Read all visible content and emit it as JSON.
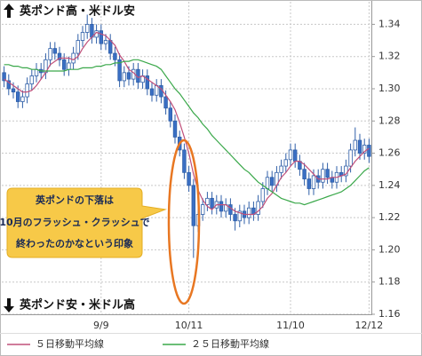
{
  "chart_data": {
    "type": "candlestick",
    "categories": [
      null,
      null,
      null,
      null,
      null,
      null,
      null,
      null,
      null,
      null,
      null,
      null,
      null,
      null,
      null,
      null,
      null,
      null,
      null,
      null,
      null,
      "9/9",
      null,
      null,
      null,
      null,
      null,
      null,
      null,
      null,
      null,
      null,
      null,
      null,
      null,
      null,
      null,
      null,
      null,
      null,
      "10/11",
      null,
      null,
      null,
      null,
      null,
      null,
      null,
      null,
      null,
      null,
      null,
      null,
      null,
      null,
      null,
      null,
      null,
      null,
      null,
      null,
      null,
      "11/10",
      null,
      null,
      null,
      null,
      null,
      null,
      null,
      null,
      null,
      null,
      null,
      null,
      null,
      null,
      null,
      null,
      "12/12"
    ],
    "open": [
      1.31,
      1.305,
      1.3,
      1.298,
      1.292,
      1.295,
      1.303,
      1.308,
      1.312,
      1.31,
      1.318,
      1.325,
      1.322,
      1.318,
      1.312,
      1.316,
      1.322,
      1.33,
      1.335,
      1.34,
      1.332,
      1.336,
      1.328,
      1.33,
      1.322,
      1.318,
      1.305,
      1.31,
      1.306,
      1.312,
      1.304,
      1.308,
      1.3,
      1.296,
      1.302,
      1.295,
      1.288,
      1.28,
      1.27,
      1.262,
      1.248,
      1.24,
      1.215,
      1.222,
      1.228,
      1.232,
      1.226,
      1.23,
      1.224,
      1.228,
      1.222,
      1.218,
      1.224,
      1.22,
      1.226,
      1.222,
      1.23,
      1.238,
      1.245,
      1.24,
      1.248,
      1.252,
      1.256,
      1.262,
      1.255,
      1.25,
      1.244,
      1.238,
      1.246,
      1.242,
      1.25,
      1.245,
      1.242,
      1.248,
      1.246,
      1.252,
      1.262,
      1.268,
      1.26,
      1.265
    ],
    "high": [
      1.314,
      1.309,
      1.304,
      1.302,
      1.299,
      1.307,
      1.312,
      1.316,
      1.316,
      1.322,
      1.329,
      1.329,
      1.326,
      1.322,
      1.32,
      1.326,
      1.334,
      1.339,
      1.346,
      1.344,
      1.34,
      1.34,
      1.334,
      1.334,
      1.326,
      1.322,
      1.314,
      1.314,
      1.316,
      1.316,
      1.312,
      1.312,
      1.304,
      1.306,
      1.306,
      1.299,
      1.292,
      1.284,
      1.274,
      1.266,
      1.252,
      1.244,
      1.226,
      1.232,
      1.236,
      1.236,
      1.234,
      1.234,
      1.232,
      1.232,
      1.226,
      1.228,
      1.228,
      1.23,
      1.23,
      1.234,
      1.242,
      1.249,
      1.249,
      1.252,
      1.256,
      1.26,
      1.266,
      1.266,
      1.259,
      1.254,
      1.248,
      1.25,
      1.25,
      1.254,
      1.254,
      1.249,
      1.252,
      1.252,
      1.256,
      1.266,
      1.276,
      1.272,
      1.269,
      1.269
    ],
    "low": [
      1.301,
      1.296,
      1.294,
      1.288,
      1.288,
      1.291,
      1.299,
      1.304,
      1.306,
      1.306,
      1.314,
      1.318,
      1.314,
      1.308,
      1.308,
      1.312,
      1.318,
      1.326,
      1.331,
      1.328,
      1.328,
      1.324,
      1.324,
      1.318,
      1.314,
      1.301,
      1.301,
      1.302,
      1.302,
      1.3,
      1.3,
      1.296,
      1.292,
      1.292,
      1.291,
      1.284,
      1.276,
      1.266,
      1.258,
      1.244,
      1.236,
      1.195,
      1.211,
      1.218,
      1.224,
      1.222,
      1.222,
      1.22,
      1.22,
      1.218,
      1.212,
      1.214,
      1.216,
      1.216,
      1.218,
      1.218,
      1.226,
      1.234,
      1.236,
      1.236,
      1.244,
      1.248,
      1.252,
      1.251,
      1.246,
      1.24,
      1.234,
      1.234,
      1.238,
      1.238,
      1.241,
      1.238,
      1.238,
      1.242,
      1.242,
      1.248,
      1.258,
      1.256,
      1.256,
      1.254
    ],
    "close": [
      1.305,
      1.3,
      1.298,
      1.292,
      1.295,
      1.303,
      1.308,
      1.312,
      1.31,
      1.318,
      1.325,
      1.322,
      1.318,
      1.312,
      1.316,
      1.322,
      1.33,
      1.335,
      1.34,
      1.332,
      1.336,
      1.328,
      1.33,
      1.322,
      1.318,
      1.305,
      1.31,
      1.306,
      1.312,
      1.304,
      1.308,
      1.3,
      1.296,
      1.302,
      1.295,
      1.288,
      1.28,
      1.27,
      1.262,
      1.248,
      1.24,
      1.215,
      1.222,
      1.228,
      1.232,
      1.226,
      1.23,
      1.224,
      1.228,
      1.222,
      1.218,
      1.224,
      1.22,
      1.226,
      1.222,
      1.23,
      1.238,
      1.245,
      1.24,
      1.248,
      1.252,
      1.256,
      1.262,
      1.255,
      1.25,
      1.244,
      1.238,
      1.246,
      1.242,
      1.25,
      1.245,
      1.242,
      1.248,
      1.246,
      1.252,
      1.262,
      1.268,
      1.26,
      1.265,
      1.258
    ],
    "up_color": "#ffffff",
    "down_color": "#3a6fc4",
    "candle_stroke": "#2f5fa8",
    "series": [
      {
        "name": "５日移動平均線",
        "color": "#c0507a",
        "values": [
          1.306,
          1.304,
          1.302,
          1.3,
          1.298,
          1.298,
          1.299,
          1.302,
          1.306,
          1.31,
          1.315,
          1.317,
          1.319,
          1.319,
          1.319,
          1.318,
          1.32,
          1.325,
          1.329,
          1.332,
          1.335,
          1.334,
          1.333,
          1.33,
          1.327,
          1.321,
          1.317,
          1.312,
          1.31,
          1.307,
          1.308,
          1.306,
          1.304,
          1.302,
          1.3,
          1.296,
          1.292,
          1.287,
          1.279,
          1.27,
          1.26,
          1.247,
          1.237,
          1.231,
          1.227,
          1.225,
          1.228,
          1.228,
          1.228,
          1.226,
          1.224,
          1.223,
          1.222,
          1.222,
          1.222,
          1.224,
          1.227,
          1.232,
          1.235,
          1.24,
          1.245,
          1.248,
          1.252,
          1.255,
          1.255,
          1.253,
          1.25,
          1.247,
          1.244,
          1.244,
          1.244,
          1.245,
          1.245,
          1.246,
          1.247,
          1.251,
          1.255,
          1.258,
          1.261,
          1.263
        ]
      },
      {
        "name": "２５日移動平均線",
        "color": "#3aa84a",
        "values": [
          1.315,
          1.315,
          1.314,
          1.314,
          1.313,
          1.313,
          1.312,
          1.312,
          1.311,
          1.311,
          1.311,
          1.311,
          1.311,
          1.311,
          1.312,
          1.312,
          1.312,
          1.313,
          1.313,
          1.313,
          1.314,
          1.314,
          1.315,
          1.315,
          1.316,
          1.316,
          1.317,
          1.317,
          1.318,
          1.318,
          1.317,
          1.316,
          1.315,
          1.314,
          1.312,
          1.308,
          1.304,
          1.3,
          1.297,
          1.293,
          1.289,
          1.285,
          1.282,
          1.278,
          1.275,
          1.271,
          1.268,
          1.265,
          1.262,
          1.259,
          1.256,
          1.253,
          1.25,
          1.248,
          1.245,
          1.242,
          1.24,
          1.238,
          1.236,
          1.234,
          1.232,
          1.231,
          1.23,
          1.229,
          1.229,
          1.228,
          1.229,
          1.23,
          1.231,
          1.232,
          1.233,
          1.234,
          1.235,
          1.236,
          1.238,
          1.24,
          1.243,
          1.246,
          1.249,
          1.251
        ]
      }
    ],
    "ylim": [
      1.16,
      1.354
    ],
    "yticks": [
      1.16,
      1.18,
      {
        "value": 1.2,
        "label": "1.20"
      },
      1.22,
      1.24,
      1.26,
      1.28,
      {
        "value": 1.3,
        "label": "1.30"
      },
      1.32,
      1.34
    ],
    "grid": true,
    "annotations": [
      "英ポンド高・米ドル安",
      "英ポンド安・米ドル高"
    ],
    "callout": [
      "英ポンドの下落は",
      "10月のフラッシュ・クラッシュで",
      "終わったのかなという印象"
    ]
  }
}
